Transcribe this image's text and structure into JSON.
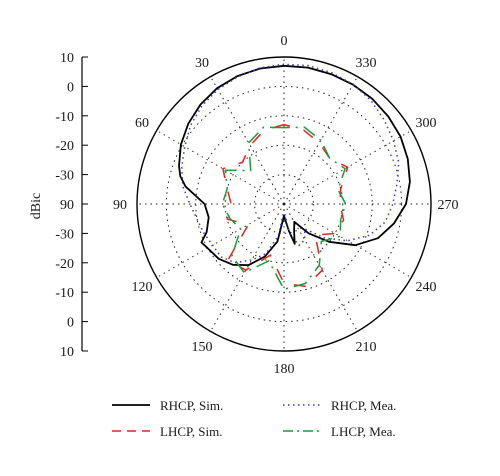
{
  "colors": {
    "rhcp_sim": "#000000",
    "lhcp_sim": "#e8251f",
    "rhcp_mea": "#2f3fd1",
    "lhcp_mea": "#1c9a3a",
    "grid": "#222222"
  },
  "chart_data": {
    "type": "polar",
    "ylabel": "dBic",
    "r_range": [
      -40,
      10
    ],
    "r_ticks_upper": [
      "10",
      "0",
      "-10",
      "-20",
      "-30"
    ],
    "r_ticks_lower": [
      "-30",
      "-20",
      "-10",
      "0",
      "10"
    ],
    "center_tick_label": "90",
    "angle_labels": [
      "0",
      "30",
      "60",
      "90",
      "120",
      "150",
      "180",
      "210",
      "240",
      "270",
      "300",
      "330"
    ],
    "angle_direction": "clockwise-from-top, 0 at top, 90 at left, 270 at right",
    "grid": true,
    "series": [
      {
        "name": "RHCP, Sim.",
        "style": "solid",
        "angles": [
          0,
          10,
          20,
          30,
          40,
          50,
          60,
          70,
          75,
          80,
          90,
          100,
          110,
          115,
          120,
          130,
          140,
          150,
          160,
          170,
          180,
          190,
          195,
          200,
          210,
          220,
          230,
          240,
          250,
          260,
          270,
          280,
          290,
          300,
          310,
          320,
          330,
          340,
          350
        ],
        "values": [
          7,
          6.8,
          6.3,
          5.5,
          4.2,
          2.5,
          0.5,
          -2,
          -3.5,
          -6,
          -13,
          -14,
          -12,
          -9,
          -10,
          -11,
          -13,
          -16,
          -21,
          -27,
          -36,
          -31,
          -26,
          -30,
          -33,
          -27,
          -20,
          -12,
          -6,
          -2,
          1.5,
          3.5,
          4.8,
          5.8,
          6.3,
          6.7,
          6.9,
          7,
          7.1
        ]
      },
      {
        "name": "LHCP, Sim.",
        "style": "dashed",
        "angles": [
          0,
          15,
          30,
          45,
          60,
          75,
          90,
          105,
          120,
          135,
          150,
          165,
          180,
          195,
          210,
          225,
          240,
          255,
          270,
          285,
          300,
          315,
          330,
          345
        ],
        "values": [
          -13,
          -14,
          -17,
          -20,
          -16,
          -20,
          -22,
          -20,
          -26,
          -13,
          -14,
          -22,
          -13,
          -11,
          -14,
          -25,
          -20,
          -19,
          -21,
          -20,
          -15,
          -18,
          -16,
          -14
        ]
      },
      {
        "name": "RHCP, Mea.",
        "style": "dotted",
        "angles": [
          0,
          10,
          20,
          30,
          40,
          50,
          60,
          70,
          80,
          90,
          100,
          110,
          120,
          130,
          140,
          150,
          160,
          170,
          180,
          190,
          200,
          210,
          220,
          230,
          240,
          250,
          260,
          270,
          280,
          290,
          300,
          310,
          320,
          330,
          340,
          350
        ],
        "values": [
          7.5,
          7,
          6,
          5,
          3.5,
          1.5,
          -1,
          -3,
          -5,
          -8,
          -10,
          -11,
          -12,
          -12,
          -14,
          -18,
          -22,
          -29,
          -38,
          -30,
          -25,
          -26,
          -29,
          -22,
          -15,
          -9,
          -5,
          -3,
          -1,
          1.5,
          3,
          4.5,
          6,
          7,
          7.5,
          7.8
        ]
      },
      {
        "name": "LHCP, Mea.",
        "style": "dash-dot",
        "angles": [
          0,
          15,
          30,
          45,
          60,
          75,
          90,
          105,
          120,
          135,
          150,
          165,
          180,
          195,
          210,
          225,
          240,
          255,
          270,
          285,
          300,
          315,
          330,
          345
        ],
        "values": [
          -14,
          -13,
          -16,
          -24,
          -17,
          -20,
          -19,
          -21,
          -23,
          -15,
          -13,
          -20,
          -11,
          -12,
          -16,
          -22,
          -18,
          -20,
          -19,
          -21,
          -16,
          -18,
          -15,
          -13
        ]
      }
    ],
    "legend": {
      "placement": "bottom",
      "entries": [
        "RHCP, Sim.",
        "LHCP, Sim.",
        "RHCP, Mea.",
        "LHCP, Mea."
      ]
    }
  }
}
